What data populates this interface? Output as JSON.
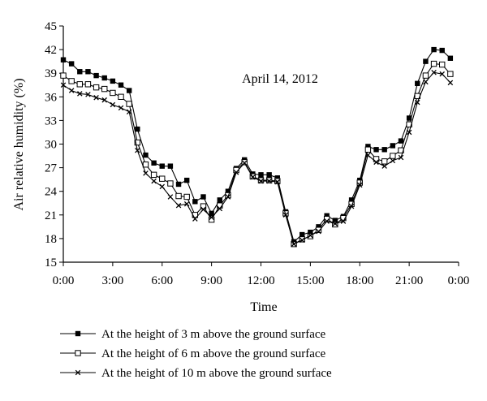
{
  "chart_data": {
    "type": "line",
    "annotation": "April 14, 2012",
    "xlabel": "Time",
    "ylabel": "Air relative humidity (%)",
    "ylim": [
      15,
      45
    ],
    "yticks": [
      "15",
      "18",
      "21",
      "24",
      "27",
      "30",
      "33",
      "36",
      "39",
      "42",
      "45"
    ],
    "xticks": [
      "0:00",
      "3:00",
      "6:00",
      "9:00",
      "12:00",
      "15:00",
      "18:00",
      "21:00",
      "0:00"
    ],
    "xlim_hours": [
      0,
      24
    ],
    "grid": false,
    "legend_position": "bottom",
    "x": [
      0,
      0.5,
      1,
      1.5,
      2,
      2.5,
      3,
      3.5,
      4,
      4.5,
      5,
      5.5,
      6,
      6.5,
      7,
      7.5,
      8,
      8.5,
      9,
      9.5,
      10,
      10.5,
      11,
      11.5,
      12,
      12.5,
      13,
      13.5,
      14,
      14.5,
      15,
      15.5,
      16,
      16.5,
      17,
      17.5,
      18,
      18.5,
      19,
      19.5,
      20,
      20.5,
      21,
      21.5,
      22,
      22.5,
      23,
      23.5
    ],
    "series": [
      {
        "name": "At the height of 3 m above the ground surface",
        "marker": "filled-square",
        "values": [
          40.7,
          40.2,
          39.2,
          39.2,
          38.7,
          38.4,
          38.0,
          37.5,
          36.8,
          31.9,
          28.6,
          27.6,
          27.2,
          27.2,
          24.9,
          25.4,
          22.7,
          23.3,
          21.2,
          22.9,
          24.0,
          26.9,
          28.0,
          26.2,
          26.1,
          26.1,
          25.7,
          21.4,
          17.6,
          18.5,
          18.8,
          19.5,
          20.9,
          20.3,
          20.8,
          22.9,
          25.4,
          29.7,
          29.3,
          29.3,
          29.8,
          30.4,
          33.3,
          37.7,
          40.5,
          42.0,
          41.9,
          40.9
        ]
      },
      {
        "name": "At the height of 6 m above the ground surface",
        "marker": "open-square",
        "values": [
          38.7,
          38.0,
          37.6,
          37.6,
          37.2,
          37.0,
          36.5,
          36.0,
          35.1,
          30.2,
          27.4,
          26.1,
          25.6,
          25.0,
          23.4,
          23.3,
          21.0,
          22.1,
          20.4,
          22.2,
          23.5,
          26.7,
          27.7,
          25.9,
          25.4,
          25.4,
          25.3,
          21.2,
          17.3,
          17.9,
          18.3,
          19.1,
          20.5,
          19.8,
          20.6,
          22.4,
          25.1,
          29.3,
          28.1,
          27.8,
          28.5,
          29.2,
          32.5,
          36.1,
          38.7,
          40.2,
          40.1,
          38.9
        ]
      },
      {
        "name": "At the height of 10 m above the ground surface",
        "marker": "x",
        "values": [
          37.5,
          36.8,
          36.4,
          36.3,
          35.9,
          35.6,
          35.0,
          34.6,
          34.1,
          29.2,
          26.3,
          25.3,
          24.6,
          23.3,
          22.2,
          22.4,
          20.5,
          21.7,
          20.7,
          21.8,
          23.3,
          26.4,
          27.6,
          25.8,
          25.3,
          25.3,
          25.2,
          21.0,
          17.3,
          17.8,
          18.4,
          18.9,
          20.2,
          19.9,
          20.2,
          22.1,
          24.8,
          28.6,
          27.7,
          27.2,
          27.9,
          28.3,
          31.5,
          35.3,
          37.9,
          39.1,
          38.9,
          37.8
        ]
      }
    ]
  }
}
